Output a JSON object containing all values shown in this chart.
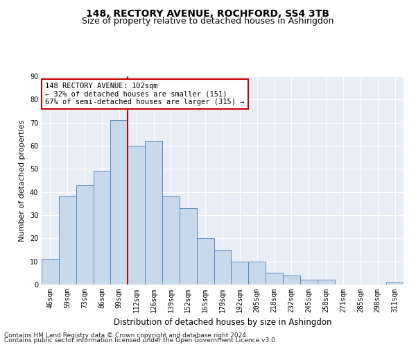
{
  "title": "148, RECTORY AVENUE, ROCHFORD, SS4 3TB",
  "subtitle": "Size of property relative to detached houses in Ashingdon",
  "xlabel": "Distribution of detached houses by size in Ashingdon",
  "ylabel": "Number of detached properties",
  "bar_labels": [
    "46sqm",
    "59sqm",
    "73sqm",
    "86sqm",
    "99sqm",
    "112sqm",
    "126sqm",
    "139sqm",
    "152sqm",
    "165sqm",
    "179sqm",
    "192sqm",
    "205sqm",
    "218sqm",
    "232sqm",
    "245sqm",
    "258sqm",
    "271sqm",
    "285sqm",
    "298sqm",
    "311sqm"
  ],
  "bar_values": [
    11,
    38,
    43,
    49,
    71,
    60,
    62,
    38,
    33,
    20,
    15,
    10,
    10,
    5,
    4,
    2,
    2,
    0,
    0,
    0,
    1
  ],
  "bar_color": "#c9d9ec",
  "bar_edge_color": "#5b8aba",
  "vline_index": 4,
  "vline_color": "#cc0000",
  "annotation_text": "148 RECTORY AVENUE: 102sqm\n← 32% of detached houses are smaller (151)\n67% of semi-detached houses are larger (315) →",
  "annotation_box_color": "#ffffff",
  "annotation_box_edge": "#cc0000",
  "ylim": [
    0,
    90
  ],
  "yticks": [
    0,
    10,
    20,
    30,
    40,
    50,
    60,
    70,
    80,
    90
  ],
  "bg_color": "#e8eef5",
  "grid_color": "#ffffff",
  "footer_line1": "Contains HM Land Registry data © Crown copyright and database right 2024.",
  "footer_line2": "Contains public sector information licensed under the Open Government Licence v3.0.",
  "title_fontsize": 10,
  "subtitle_fontsize": 9,
  "xlabel_fontsize": 8.5,
  "ylabel_fontsize": 8,
  "tick_fontsize": 7,
  "annotation_fontsize": 7.5,
  "footer_fontsize": 6.5
}
